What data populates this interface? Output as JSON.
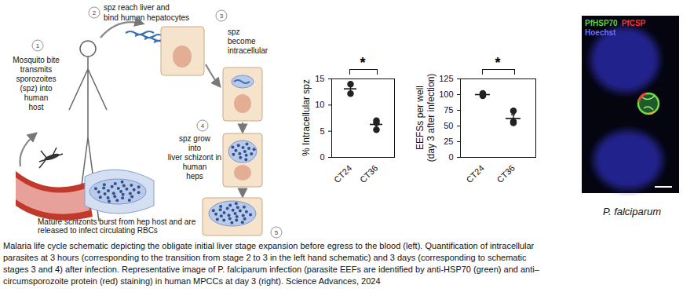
{
  "schematic": {
    "steps": [
      {
        "number": "1",
        "lines": [
          "Mosquito bite",
          "transmits",
          "sporozoites",
          "(spz) into",
          "human",
          "host"
        ]
      },
      {
        "number": "2",
        "lines": [
          "spz reach liver and",
          "bind human hepatocytes"
        ]
      },
      {
        "number": "3",
        "lines": [
          "spz",
          "become",
          "intracellular"
        ]
      },
      {
        "number": "4",
        "lines": [
          "spz grow",
          "into",
          "liver schizont in",
          "human",
          "heps"
        ]
      },
      {
        "number": "5",
        "lines": [
          "Mature schizonts burst from hep host and are",
          "released to infect circulating RBCs"
        ]
      }
    ]
  },
  "chart_data": [
    {
      "type": "dot",
      "ylabel": [
        "% Intracellular spz"
      ],
      "categories": [
        "CT24",
        "CT36"
      ],
      "points": [
        [
          14.0,
          12.2
        ],
        [
          7.0,
          5.3,
          6.6
        ]
      ],
      "mean": [
        13.1,
        6.3
      ],
      "sem": [
        0.9,
        0.5
      ],
      "ylim": [
        0,
        15
      ],
      "yticks": [
        0,
        5,
        10,
        15
      ],
      "color": "#222222",
      "annotations": [
        {
          "text": "*",
          "between": [
            "CT24",
            "CT36"
          ]
        }
      ]
    },
    {
      "type": "dot",
      "ylabel": [
        "EEFSs per well",
        "(day 3 after infection)"
      ],
      "categories": [
        "CT24",
        "CT36"
      ],
      "points": [
        [
          98,
          100,
          102
        ],
        [
          74,
          57,
          55
        ]
      ],
      "mean": [
        100,
        62
      ],
      "sem": [
        1.2,
        6.0
      ],
      "ylim": [
        0,
        125
      ],
      "yticks": [
        0,
        25,
        50,
        75,
        100,
        125
      ],
      "color": "#222222",
      "annotations": [
        {
          "text": "*",
          "between": [
            "CT24",
            "CT36"
          ]
        }
      ]
    }
  ],
  "image": {
    "stains": [
      {
        "text": "PfHSP70",
        "color": "#5fd13b"
      },
      {
        "text": "PfCSP",
        "color": "#ff3030"
      },
      {
        "text": "Hoechst",
        "color": "#6f6fff"
      }
    ],
    "label": "P. falciparum"
  },
  "caption": [
    "Malaria life cycle schematic depicting the obligate initial liver stage expansion before egress to the blood (left). Quantification of intracellular",
    "parasites at 3 hours (corresponding to the transition from stage 2 to 3 in the left hand schematic) and 3 days (corresponding to schematic",
    "stages 3 and 4) after infection. Representative image of P. falciparum infection (parasite EEFs are identified by anti-HSP70 (green) and anti–",
    "circumsporozoite protein (red) staining) in human MPCCs at day 3 (right). Science Advances, 2024"
  ]
}
